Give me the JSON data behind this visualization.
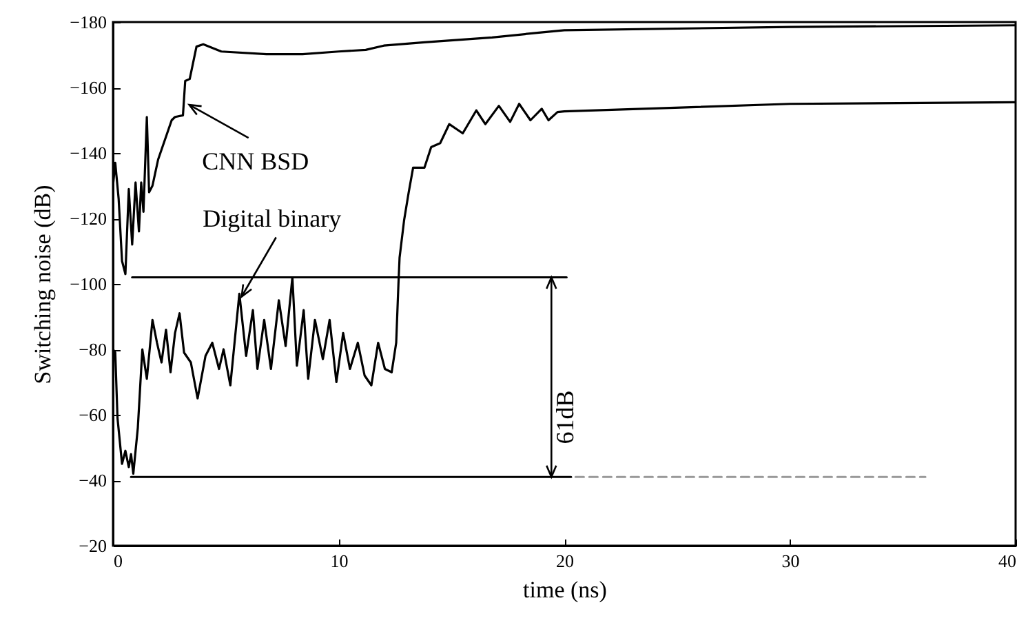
{
  "chart_data": {
    "type": "line",
    "xlabel": "time (ns)",
    "ylabel": "Switching noise (dB)",
    "xlim": [
      0,
      40
    ],
    "ylim": [
      -20,
      -180
    ],
    "xticks": [
      0,
      10,
      20,
      30,
      40
    ],
    "yticks": [
      -180,
      -160,
      -140,
      -120,
      -100,
      -80,
      -60,
      -40,
      -20
    ],
    "series": [
      {
        "color": "#000000",
        "x": [
          0,
          0.1,
          0.25,
          0.4,
          0.55,
          0.7,
          0.85,
          1.0,
          1.15,
          1.25,
          1.35,
          1.5,
          1.6,
          1.75,
          2.0,
          2.3,
          2.6,
          2.75,
          3.1,
          3.2,
          3.4,
          3.7,
          4.0,
          4.8,
          6.8,
          8.4,
          10,
          11.2,
          12,
          13.8,
          16.8,
          18.8,
          20,
          30,
          40
        ],
        "values": [
          -130,
          -137,
          -126,
          -107,
          -103,
          -129,
          -112,
          -131,
          -116,
          -131,
          -122,
          -151,
          -128,
          -130,
          -138,
          -144,
          -150,
          -151,
          -151.5,
          -162,
          -162.6,
          -172.5,
          -173.2,
          -171,
          -170.2,
          -170.2,
          -171,
          -171.5,
          -172.8,
          -173.8,
          -175.3,
          -176.7,
          -177.5,
          -178.5,
          -179
        ]
      },
      {
        "color": "#000000",
        "x": [
          0,
          0.1,
          0.2,
          0.4,
          0.55,
          0.7,
          0.8,
          0.9,
          1.1,
          1.3,
          1.5,
          1.75,
          1.95,
          2.15,
          2.35,
          2.55,
          2.75,
          2.95,
          3.15,
          3.45,
          3.75,
          4.1,
          4.4,
          4.7,
          4.9,
          5.2,
          5.6,
          5.9,
          6.2,
          6.4,
          6.7,
          7.0,
          7.35,
          7.65,
          7.95,
          8.15,
          8.45,
          8.65,
          8.95,
          9.3,
          9.6,
          9.9,
          10.2,
          10.5,
          10.85,
          11.15,
          11.45,
          11.75,
          12.05,
          12.35,
          12.55,
          12.65,
          12.7,
          12.9,
          13.1,
          13.3,
          13.8,
          14.1,
          14.5,
          14.9,
          15.5,
          16.1,
          16.5,
          17.1,
          17.6,
          18.0,
          18.5,
          19.0,
          19.3,
          19.7,
          20,
          30,
          40
        ],
        "values": [
          -80,
          -79,
          -59,
          -45,
          -49,
          -44,
          -48,
          -42,
          -56,
          -80,
          -71,
          -89,
          -82,
          -76,
          -86,
          -73,
          -85,
          -91,
          -79,
          -76,
          -65,
          -78,
          -82,
          -74,
          -80,
          -69,
          -97,
          -78,
          -92,
          -74,
          -89,
          -74,
          -95,
          -81,
          -102,
          -75,
          -92,
          -71,
          -89,
          -77,
          -89,
          -70,
          -85,
          -74,
          -82,
          -72,
          -69,
          -82,
          -74,
          -73,
          -82,
          -100,
          -108,
          -119.4,
          -127.8,
          -135.5,
          -135.5,
          -141.8,
          -143,
          -148.8,
          -146,
          -153,
          -148.8,
          -154.4,
          -149.5,
          -155,
          -150,
          -153.5,
          -150,
          -152.5,
          -152.7,
          -155,
          -155.5
        ]
      },
      {
        "color": "#000000",
        "x": [
          0.85,
          20.1
        ],
        "values": [
          -102,
          -102
        ]
      },
      {
        "color": "#000000",
        "x": [
          0.8,
          20.3
        ],
        "values": [
          -41,
          -41
        ]
      },
      {
        "color": "#999999",
        "line_style": "dashed",
        "x": [
          20.5,
          36
        ],
        "values": [
          -41,
          -41
        ]
      }
    ],
    "annotations": [
      {
        "text": "CNN BSD",
        "x": 3.38,
        "y": -154.7
      },
      {
        "text": "Digital binary",
        "x": 5.7,
        "y": -96.1
      },
      "61dB"
    ]
  }
}
